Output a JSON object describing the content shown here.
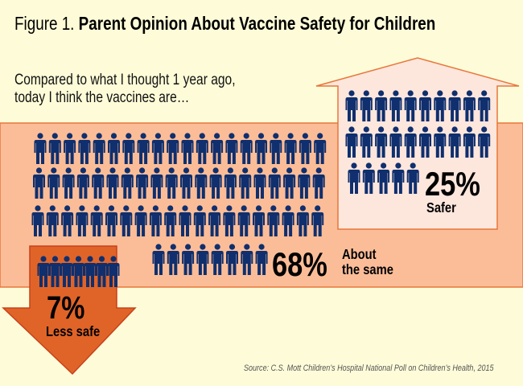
{
  "title": {
    "prefix": "Figure 1.",
    "main": "Parent Opinion About Vaccine Safety for Children"
  },
  "subtitle": {
    "line1": "Compared to what I thought 1 year ago,",
    "line2": "today I think the vaccines are…"
  },
  "source": "Source: C.S. Mott Children’s Hospital National Poll on Children’s Health, 2015",
  "chart_data": {
    "type": "pictogram",
    "unit": "1 person icon = 1%",
    "categories": [
      "Safer",
      "About the same",
      "Less safe"
    ],
    "values": [
      25,
      68,
      7
    ],
    "labels": [
      {
        "value": "25%",
        "text": "Safer"
      },
      {
        "value": "68%",
        "text1": "About",
        "text2": "the same"
      },
      {
        "value": "7%",
        "text": "Less safe"
      }
    ],
    "colors": {
      "icon": "#0f2f6e",
      "background": "#fefcd8",
      "same_band": "#fbbd98",
      "safer_arrow": "#fde6dc",
      "less_safe_arrow": "#e06428",
      "outline": "#e8763a"
    }
  }
}
